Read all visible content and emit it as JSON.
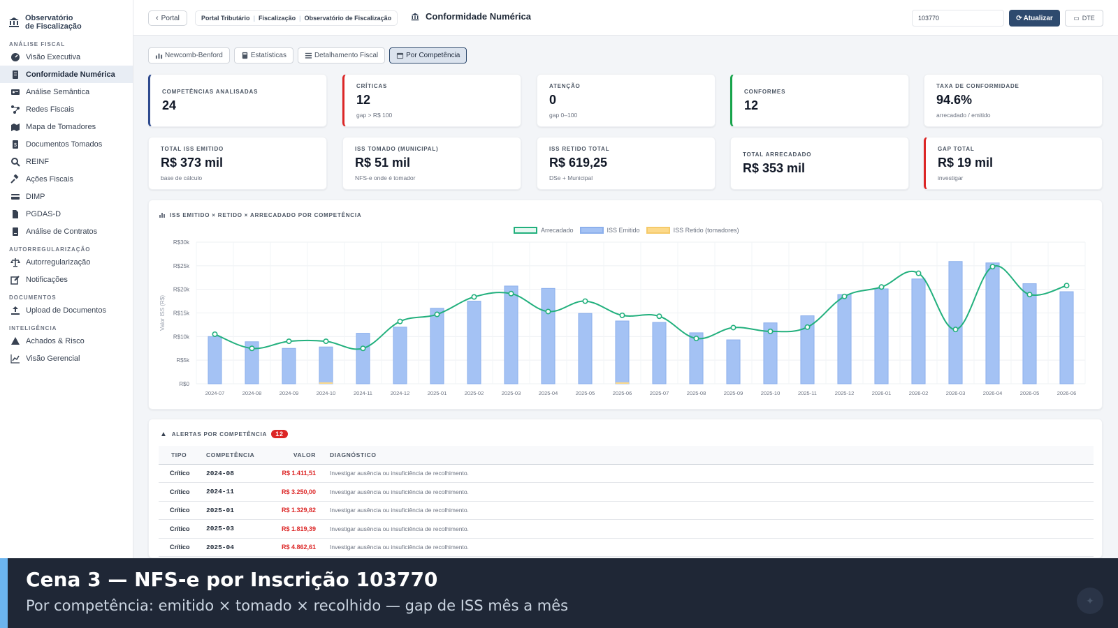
{
  "brand": {
    "line1": "Observatório",
    "line2": "de Fiscalização"
  },
  "sidebar": {
    "sections": [
      {
        "label": "ANÁLISE FISCAL",
        "items": [
          {
            "label": "Visão Executiva",
            "icon": "gauge-icon",
            "active": false
          },
          {
            "label": "Conformidade Numérica",
            "icon": "document-icon",
            "active": true
          },
          {
            "label": "Análise Semântica",
            "icon": "id-card-icon",
            "active": false
          },
          {
            "label": "Redes Fiscais",
            "icon": "network-icon",
            "active": false
          },
          {
            "label": "Mapa de Tomadores",
            "icon": "map-icon",
            "active": false
          },
          {
            "label": "Documentos Tomados",
            "icon": "file-dollar-icon",
            "active": false
          },
          {
            "label": "REINF",
            "icon": "search-icon",
            "active": false
          },
          {
            "label": "Ações Fiscais",
            "icon": "gavel-icon",
            "active": false
          },
          {
            "label": "DIMP",
            "icon": "credit-card-icon",
            "active": false
          },
          {
            "label": "PGDAS-D",
            "icon": "file-icon",
            "active": false
          },
          {
            "label": "Análise de Contratos",
            "icon": "contract-icon",
            "active": false
          }
        ]
      },
      {
        "label": "AUTORREGULARIZAÇÃO",
        "items": [
          {
            "label": "Autorregularização",
            "icon": "scale-icon",
            "active": false
          },
          {
            "label": "Notificações",
            "icon": "edit-icon",
            "active": false
          }
        ]
      },
      {
        "label": "DOCUMENTOS",
        "items": [
          {
            "label": "Upload de Documentos",
            "icon": "upload-icon",
            "active": false
          }
        ]
      },
      {
        "label": "INTELIGÊNCIA",
        "items": [
          {
            "label": "Achados & Risco",
            "icon": "warning-icon",
            "active": false
          },
          {
            "label": "Visão Gerencial",
            "icon": "line-chart-icon",
            "active": false
          }
        ]
      }
    ]
  },
  "topbar": {
    "portal_label": "Portal",
    "breadcrumbs": [
      "Portal Tributário",
      "Fiscalização",
      "Observatório de Fiscalização"
    ],
    "title": "Conformidade Numérica",
    "inscricao_value": "103770",
    "update_label": "Atualizar",
    "dte_label": "DTE"
  },
  "tabs": [
    {
      "label": "Newcomb-Benford",
      "icon": "chart-icon",
      "active": false
    },
    {
      "label": "Estatísticas",
      "icon": "calculator-icon",
      "active": false
    },
    {
      "label": "Detalhamento Fiscal",
      "icon": "list-icon",
      "active": false
    },
    {
      "label": "Por Competência",
      "icon": "calendar-icon",
      "active": true
    }
  ],
  "kpis_row1": [
    {
      "label": "COMPETÊNCIAS ANALISADAS",
      "value": "24",
      "sub": "",
      "accent": "#2e4a8e"
    },
    {
      "label": "CRÍTICAS",
      "value": "12",
      "sub": "gap > R$ 100",
      "accent": "#dc2626"
    },
    {
      "label": "ATENÇÃO",
      "value": "0",
      "sub": "gap 0–100",
      "accent": ""
    },
    {
      "label": "CONFORMES",
      "value": "12",
      "sub": "",
      "accent": "#16a34a"
    },
    {
      "label": "TAXA DE CONFORMIDADE",
      "value": "94.6%",
      "sub": "arrecadado / emitido",
      "accent": ""
    }
  ],
  "kpis_row2": [
    {
      "label": "TOTAL ISS EMITIDO",
      "value": "R$ 373 mil",
      "sub": "base de cálculo",
      "accent": ""
    },
    {
      "label": "ISS TOMADO (MUNICIPAL)",
      "value": "R$ 51 mil",
      "sub": "NFS-e onde é tomador",
      "accent": ""
    },
    {
      "label": "ISS RETIDO TOTAL",
      "value": "R$ 619,25",
      "sub": "DSe + Municipal",
      "accent": ""
    },
    {
      "label": "TOTAL ARRECADADO",
      "value": "R$ 353 mil",
      "sub": "",
      "accent": ""
    },
    {
      "label": "GAP TOTAL",
      "value": "R$ 19 mil",
      "sub": "investigar",
      "accent": "#dc2626"
    }
  ],
  "chart_title": "ISS EMITIDO × RETIDO × ARRECADADO POR COMPETÊNCIA",
  "chart_data": {
    "type": "bar",
    "title": "ISS EMITIDO × RETIDO × ARRECADADO POR COMPETÊNCIA",
    "ylabel": "Valor ISS (R$)",
    "xlabel": "",
    "ylim": [
      0,
      30000
    ],
    "yticks": [
      "R$0",
      "R$5k",
      "R$10k",
      "R$15k",
      "R$20k",
      "R$25k",
      "R$30k"
    ],
    "categories": [
      "2024-07",
      "2024-08",
      "2024-09",
      "2024-10",
      "2024-11",
      "2024-12",
      "2025-01",
      "2025-02",
      "2025-03",
      "2025-04",
      "2025-05",
      "2025-06",
      "2025-07",
      "2025-08",
      "2025-09",
      "2025-10",
      "2025-11",
      "2025-12",
      "2026-01",
      "2026-02",
      "2026-03",
      "2026-04",
      "2026-05",
      "2026-06"
    ],
    "series": [
      {
        "name": "Arrecadado",
        "kind": "line",
        "color": "#22b07d",
        "values": [
          10500,
          7500,
          9000,
          9000,
          7500,
          13200,
          14700,
          18400,
          19100,
          15300,
          17500,
          14500,
          14300,
          9600,
          11900,
          11100,
          12000,
          18500,
          20500,
          23400,
          11500,
          24800,
          18900,
          20800
        ]
      },
      {
        "name": "ISS Emitido",
        "kind": "bar",
        "color": "#a4c2f4",
        "values": [
          10000,
          8900,
          7500,
          7800,
          10700,
          12000,
          16000,
          17500,
          20700,
          20200,
          14900,
          13300,
          13000,
          10800,
          9300,
          12900,
          14400,
          18900,
          20100,
          22200,
          25900,
          25600,
          21200,
          19500
        ]
      },
      {
        "name": "ISS Retido (tomadores)",
        "kind": "bar",
        "color": "#fcd98a",
        "values": [
          0,
          0,
          0,
          310,
          0,
          0,
          0,
          0,
          0,
          0,
          0,
          309,
          0,
          0,
          0,
          0,
          0,
          0,
          0,
          0,
          0,
          0,
          0,
          0
        ]
      }
    ],
    "legend": "top-center"
  },
  "alerts": {
    "title": "ALERTAS POR COMPETÊNCIA",
    "count": "12",
    "headers": [
      "TIPO",
      "COMPETÊNCIA",
      "VALOR",
      "DIAGNÓSTICO"
    ],
    "rows": [
      {
        "tipo": "Crítico",
        "comp": "2024-08",
        "valor": "R$ 1.411,51",
        "diag": "Investigar ausência ou insuficiência de recolhimento."
      },
      {
        "tipo": "Crítico",
        "comp": "2024-11",
        "valor": "R$ 3.250,00",
        "diag": "Investigar ausência ou insuficiência de recolhimento."
      },
      {
        "tipo": "Crítico",
        "comp": "2025-01",
        "valor": "R$ 1.329,82",
        "diag": "Investigar ausência ou insuficiência de recolhimento."
      },
      {
        "tipo": "Crítico",
        "comp": "2025-03",
        "valor": "R$ 1.819,39",
        "diag": "Investigar ausência ou insuficiência de recolhimento."
      },
      {
        "tipo": "Crítico",
        "comp": "2025-04",
        "valor": "R$ 4.862,61",
        "diag": "Investigar ausência ou insuficiência de recolhimento."
      }
    ]
  },
  "overlay": {
    "title": "Cena 3 — NFS-e por Inscrição 103770",
    "subtitle": "Por competência: emitido × tomado × recolhido — gap de ISS mês a mês"
  }
}
